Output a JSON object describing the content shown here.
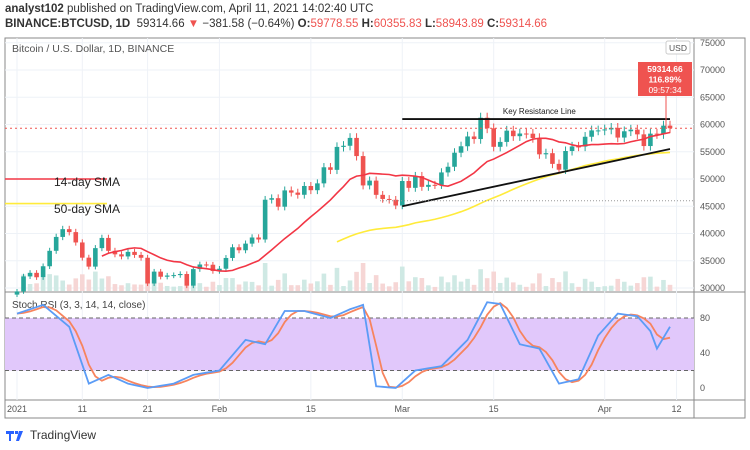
{
  "header": {
    "author": "analyst102",
    "published": "published on TradingView.com, April 11, 2021 14:02:40 UTC",
    "symbol": "BINANCE:BTCUSD, 1D",
    "last": "59314.66",
    "change": "−381.58 (−0.64%)",
    "o_label": "O:",
    "o": "59778.55",
    "h_label": "H:",
    "h": "60355.83",
    "l_label": "L:",
    "l": "58943.89",
    "c_label": "C:",
    "c": "59314.66"
  },
  "brand": "TradingView",
  "colors": {
    "up": "#26a69a",
    "down": "#ef5350",
    "sma14": "#f23645",
    "sma50": "#ffeb3b",
    "stoch_k": "#5b9cf6",
    "stoch_d": "#f7845e",
    "stoch_band": "#e1c8fb"
  },
  "chart_data": [
    {
      "type": "candlestick",
      "title": "Bitcoin / U.S. Dollar, 1D, BINANCE",
      "currency": "USD",
      "start_date": "2021-01-01",
      "ylim": [
        30000,
        75000
      ],
      "yticks": [
        "30000",
        "35000",
        "40000",
        "45000",
        "50000",
        "55000",
        "60000",
        "65000",
        "70000",
        "75000"
      ],
      "xticks": [
        "2021",
        "11",
        "21",
        "Feb",
        "15",
        "Mar",
        "15",
        "Apr",
        "12"
      ],
      "closes": [
        29374,
        32127,
        32782,
        31971,
        33992,
        36824,
        39371,
        40797,
        40254,
        38356,
        35566,
        33922,
        37316,
        39187,
        36825,
        36178,
        35792,
        36630,
        36069,
        35547,
        30825,
        33005,
        32067,
        32289,
        32366,
        32569,
        30432,
        33466,
        34316,
        34269,
        33114,
        33537,
        35510,
        37472,
        36926,
        38144,
        39266,
        38903,
        46196,
        46481,
        44918,
        47909,
        47504,
        47105,
        48717,
        47945,
        49199,
        52149,
        51679,
        55888,
        56099,
        57539,
        54207,
        48824,
        49705,
        47093,
        46339,
        46188,
        45137,
        49631,
        48378,
        50538,
        48561,
        48927,
        48912,
        51206,
        52246,
        54824,
        56008,
        57805,
        57332,
        61243,
        59302,
        55907,
        56804,
        58870,
        57858,
        58346,
        58313,
        57523,
        54529,
        54738,
        52774,
        51704,
        55137,
        55973,
        55950,
        57750,
        58917,
        58918,
        59095,
        59384,
        57603,
        58758,
        59057,
        58192,
        56048,
        58323,
        58245,
        59793,
        59314
      ],
      "price_label": {
        "price": "59314.66",
        "pct": "116.89%",
        "countdown": "09:57:34"
      },
      "annotations": {
        "resistance": "Key Resistance Line",
        "resistance_level": 61000,
        "support_from": [
          "2021-03-01",
          45000
        ],
        "support_to": [
          "2021-04-11",
          55500
        ],
        "sma14_label": "14-day SMA",
        "sma50_label": "50-day SMA"
      }
    },
    {
      "type": "line",
      "title": "Stoch RSI (3, 3, 14, 14, close)",
      "ylim": [
        -10,
        100
      ],
      "yticks": [
        "0",
        "40",
        "80"
      ],
      "band": [
        20,
        80
      ],
      "k_keypoints": [
        [
          0,
          85
        ],
        [
          4,
          95
        ],
        [
          8,
          70
        ],
        [
          11,
          5
        ],
        [
          14,
          15
        ],
        [
          17,
          5
        ],
        [
          20,
          0
        ],
        [
          24,
          5
        ],
        [
          27,
          15
        ],
        [
          31,
          20
        ],
        [
          35,
          55
        ],
        [
          38,
          50
        ],
        [
          41,
          88
        ],
        [
          44,
          88
        ],
        [
          48,
          80
        ],
        [
          51,
          90
        ],
        [
          53,
          95
        ],
        [
          55,
          2
        ],
        [
          58,
          0
        ],
        [
          61,
          20
        ],
        [
          65,
          25
        ],
        [
          69,
          55
        ],
        [
          72,
          98
        ],
        [
          74,
          96
        ],
        [
          77,
          50
        ],
        [
          80,
          45
        ],
        [
          83,
          5
        ],
        [
          86,
          10
        ],
        [
          89,
          60
        ],
        [
          92,
          85
        ],
        [
          95,
          82
        ],
        [
          97,
          65
        ],
        [
          98,
          45
        ],
        [
          100,
          70
        ]
      ]
    }
  ]
}
